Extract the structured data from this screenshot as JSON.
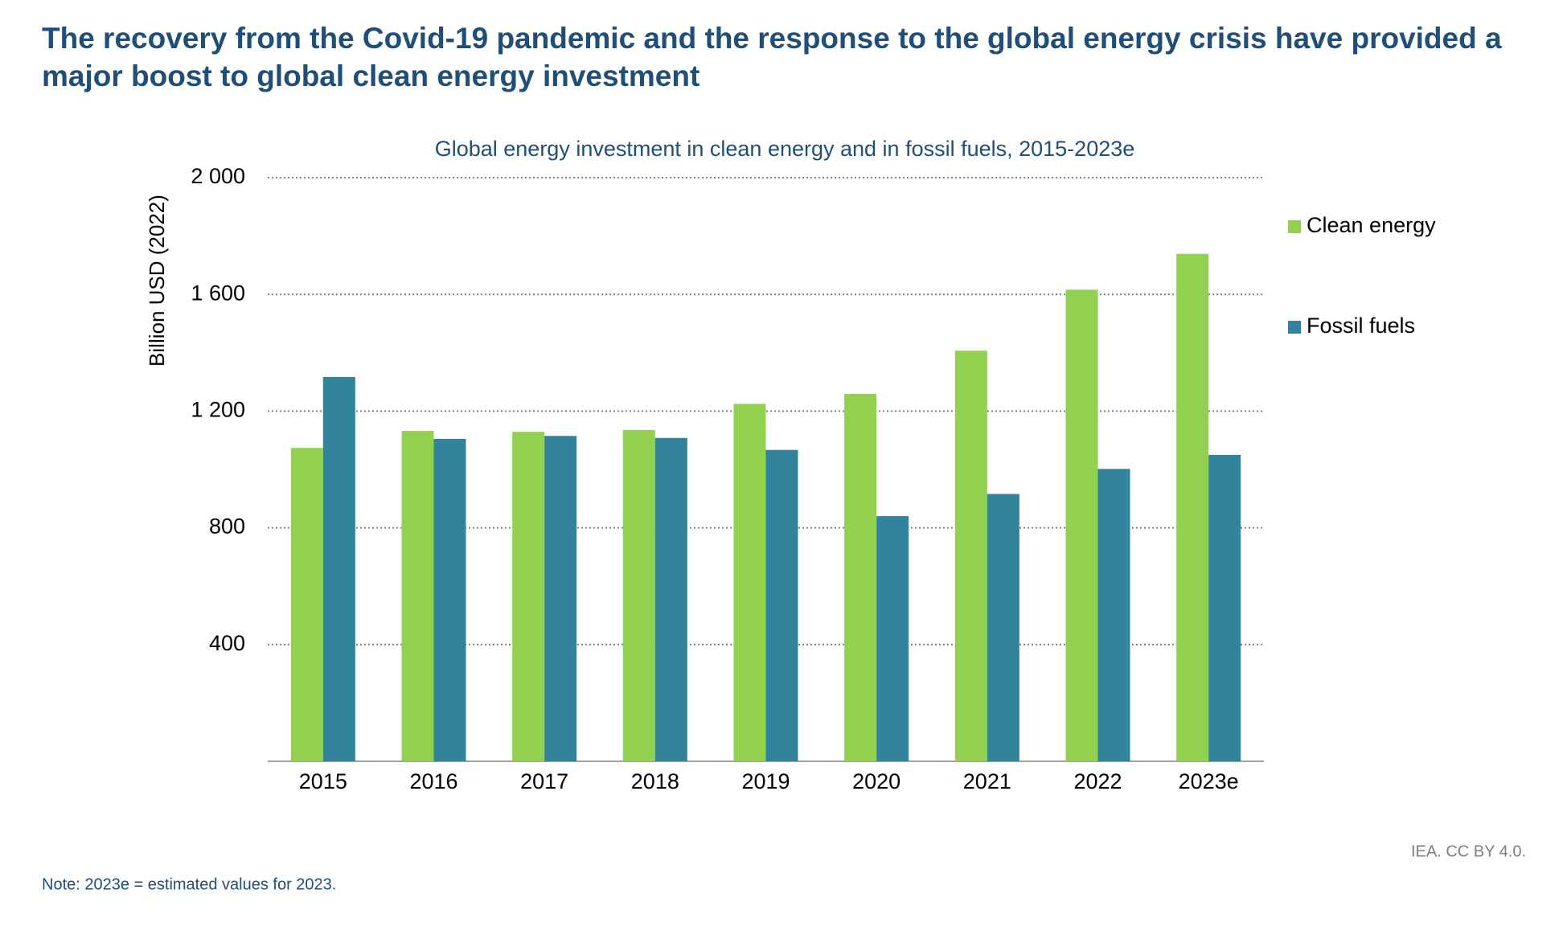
{
  "chart_data": {
    "type": "bar",
    "title": "The recovery from the Covid-19 pandemic and the response to the global energy crisis have provided a major boost to global clean energy investment",
    "subtitle": "Global energy investment in clean energy and in fossil fuels, 2015-2023e",
    "y_label": "Billion USD (2022)",
    "categories": [
      "2015",
      "2016",
      "2017",
      "2018",
      "2019",
      "2020",
      "2021",
      "2022",
      "2023e"
    ],
    "series": [
      {
        "name": "Clean energy",
        "color": "#92d050",
        "values": [
          1074,
          1132,
          1129,
          1135,
          1225,
          1259,
          1407,
          1616,
          1739
        ]
      },
      {
        "name": "Fossil fuels",
        "color": "#31849b",
        "values": [
          1317,
          1105,
          1115,
          1108,
          1067,
          840,
          916,
          1002,
          1050
        ]
      }
    ],
    "ylim": [
      0,
      2000
    ],
    "yticks": [
      400,
      800,
      {
        "value": 1200,
        "label": "1 200"
      },
      {
        "value": 1600,
        "label": "1 600"
      },
      {
        "value": 2000,
        "label": "2 000"
      }
    ],
    "grid": true,
    "legend": "right",
    "source": "IEA. CC BY 4.0.",
    "note": "Note:  2023e = estimated values for 2023."
  }
}
